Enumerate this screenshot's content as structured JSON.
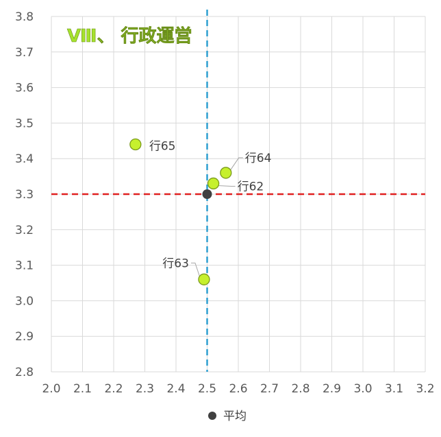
{
  "chart_data": {
    "type": "scatter",
    "title": "Ⅷ、 行政運営",
    "xlim": [
      2.0,
      3.2
    ],
    "ylim": [
      2.8,
      3.8
    ],
    "x_ticks": [
      "2.0",
      "2.1",
      "2.2",
      "2.3",
      "2.4",
      "2.5",
      "2.6",
      "2.7",
      "2.8",
      "2.9",
      "3.0",
      "3.1",
      "3.2"
    ],
    "y_ticks": [
      "2.8",
      "2.9",
      "3.0",
      "3.1",
      "3.2",
      "3.3",
      "3.4",
      "3.5",
      "3.6",
      "3.7",
      "3.8"
    ],
    "grid": true,
    "points": [
      {
        "label": "行65",
        "x": 2.27,
        "y": 3.44
      },
      {
        "label": "行64",
        "x": 2.56,
        "y": 3.36
      },
      {
        "label": "行62",
        "x": 2.52,
        "y": 3.33
      },
      {
        "label": "行63",
        "x": 2.49,
        "y": 3.06
      }
    ],
    "average": {
      "x": 2.5,
      "y": 3.3
    },
    "reference_lines": {
      "vertical_x": 2.5,
      "horizontal_y": 3.3
    },
    "legend": {
      "entries": [
        "平均"
      ],
      "placement": "bottom"
    },
    "colors": {
      "point_fill": "#c6f02e",
      "point_stroke": "#7a9a1c",
      "average": "#404040",
      "vertical_line": "#2e9fd0",
      "horizontal_line": "#e02020",
      "grid": "#d9d9d9"
    }
  }
}
